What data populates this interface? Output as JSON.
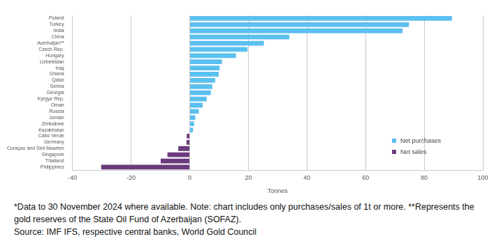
{
  "chart_data": {
    "type": "bar",
    "orientation": "horizontal",
    "categories": [
      "Poland",
      "Turkey",
      "India",
      "China",
      "Azerbaijan**",
      "Czech Rep.",
      "Hungary",
      "Uzbekistan",
      "Iraq",
      "Ghana",
      "Qatar",
      "Serbia",
      "Georgia",
      "Kyrgyz Rep.",
      "Oman",
      "Russia",
      "Jordan",
      "Zimbabwe",
      "Kazakhstan",
      "Cabo Verde",
      "Germany",
      "Curaçao and Sint Maarten",
      "Singapore",
      "Thailand",
      "Philippines"
    ],
    "series": [
      {
        "name": "Net purchases",
        "color": "#5bc0f0",
        "values": [
          89.5,
          74.8,
          72.6,
          34,
          25.3,
          19.7,
          15.8,
          11,
          10.2,
          9.9,
          8.7,
          7.7,
          7.2,
          5.8,
          4.4,
          3.1,
          1.9,
          1.5,
          1.1,
          null,
          null,
          null,
          null,
          null,
          null
        ]
      },
      {
        "name": "Net sales",
        "color": "#6b3a7d",
        "values": [
          null,
          null,
          null,
          null,
          null,
          null,
          null,
          null,
          null,
          null,
          null,
          null,
          null,
          null,
          null,
          null,
          null,
          null,
          null,
          -1,
          -1.1,
          -3.9,
          -7.6,
          -9.9,
          -30.2
        ]
      }
    ],
    "xlabel": "Tonnes",
    "xlim": [
      -40,
      100
    ],
    "xticks": [
      -40,
      -20,
      0,
      20,
      40,
      60,
      80,
      100
    ],
    "grid": true,
    "legend": "lower right",
    "footnotes": [
      "*Data to 30 November 2024 where available. Note: chart includes only purchases/sales of 1t or more. **Represents the gold reserves of the State Oil Fund of Azerbaijan (SOFAZ).",
      "Source: IMF IFS, respective central banks, World Gold Council"
    ]
  }
}
